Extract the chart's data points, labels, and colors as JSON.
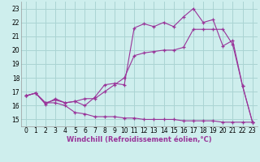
{
  "background_color": "#ceeeed",
  "grid_color": "#aad4d3",
  "line_color": "#993399",
  "xlim": [
    -0.5,
    23.5
  ],
  "ylim": [
    14.5,
    23.5
  ],
  "xticks": [
    0,
    1,
    2,
    3,
    4,
    5,
    6,
    7,
    8,
    9,
    10,
    11,
    12,
    13,
    14,
    15,
    16,
    17,
    18,
    19,
    20,
    21,
    22,
    23
  ],
  "yticks": [
    15,
    16,
    17,
    18,
    19,
    20,
    21,
    22,
    23
  ],
  "xlabel": "Windchill (Refroidissement éolien,°C)",
  "series1_x": [
    0,
    1,
    2,
    3,
    4,
    5,
    6,
    7,
    8,
    9,
    10,
    11,
    12,
    13,
    14,
    15,
    16,
    17,
    18,
    19,
    20,
    21,
    22,
    23
  ],
  "series1_y": [
    16.7,
    16.9,
    16.1,
    16.5,
    16.2,
    16.3,
    16.0,
    16.6,
    17.5,
    17.6,
    17.5,
    21.6,
    21.9,
    21.7,
    22.0,
    21.7,
    22.4,
    23.0,
    22.0,
    22.2,
    20.3,
    20.7,
    17.4,
    14.8
  ],
  "series2_x": [
    0,
    1,
    2,
    3,
    4,
    5,
    6,
    7,
    8,
    9,
    10,
    11,
    12,
    13,
    14,
    15,
    16,
    17,
    18,
    19,
    20,
    21,
    22,
    23
  ],
  "series2_y": [
    16.7,
    16.9,
    16.2,
    16.2,
    16.0,
    15.5,
    15.4,
    15.2,
    15.2,
    15.2,
    15.1,
    15.1,
    15.0,
    15.0,
    15.0,
    15.0,
    14.9,
    14.9,
    14.9,
    14.9,
    14.8,
    14.8,
    14.8,
    14.8
  ],
  "series3_x": [
    0,
    1,
    2,
    3,
    4,
    5,
    6,
    7,
    8,
    9,
    10,
    11,
    12,
    13,
    14,
    15,
    16,
    17,
    18,
    19,
    20,
    21,
    22,
    23
  ],
  "series3_y": [
    16.7,
    16.9,
    16.2,
    16.4,
    16.2,
    16.3,
    16.5,
    16.5,
    17.0,
    17.5,
    18.0,
    19.6,
    19.8,
    19.9,
    20.0,
    20.0,
    20.2,
    21.5,
    21.5,
    21.5,
    21.5,
    20.4,
    17.4,
    14.8
  ],
  "tick_fontsize": 5.5,
  "xlabel_fontsize": 6.0
}
